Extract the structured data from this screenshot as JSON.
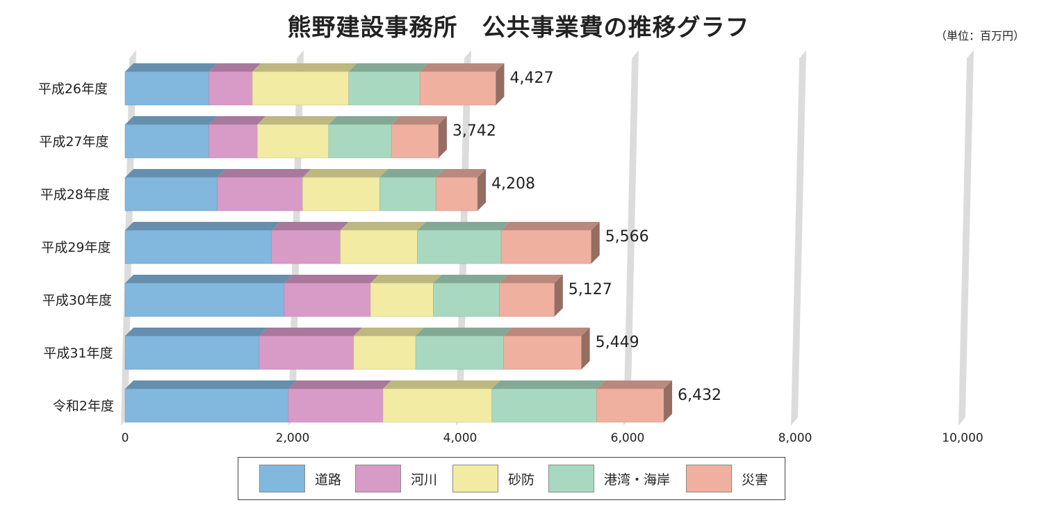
{
  "header": {
    "title": "熊野建設事務所　公共事業費の推移グラフ",
    "unit": "（単位：百万円）"
  },
  "chart_data": {
    "type": "bar",
    "orientation": "horizontal",
    "stacked": true,
    "title": "熊野建設事務所　公共事業費の推移グラフ",
    "unit": "（単位：百万円）",
    "categories": [
      "平成26年度",
      "平成27年度",
      "平成28年度",
      "平成29年度",
      "平成30年度",
      "平成31年度",
      "令和2年度"
    ],
    "totals": [
      4427,
      3742,
      4208,
      5566,
      5127,
      5449,
      6432
    ],
    "total_labels": [
      "4,427",
      "3,742",
      "4,208",
      "5,566",
      "5,127",
      "5,449",
      "6,432"
    ],
    "series": [
      {
        "name": "道路",
        "color": "#82b7de",
        "values": [
          1000,
          1000,
          1100,
          1750,
          1900,
          1600,
          1950
        ]
      },
      {
        "name": "河川",
        "color": "#d89bc8",
        "values": [
          520,
          580,
          1020,
          820,
          1030,
          1130,
          1130
        ]
      },
      {
        "name": "砂防",
        "color": "#f2eba4",
        "values": [
          1150,
          850,
          920,
          920,
          750,
          740,
          1300
        ]
      },
      {
        "name": "港湾・海岸",
        "color": "#a8d9c0",
        "values": [
          850,
          750,
          670,
          1000,
          790,
          1050,
          1250
        ]
      },
      {
        "name": "災害",
        "color": "#efb0a0",
        "values": [
          907,
          562,
          498,
          1076,
          657,
          929,
          802
        ]
      }
    ],
    "xlim": [
      0,
      10000
    ],
    "xticks": [
      0,
      2000,
      4000,
      6000,
      8000,
      10000
    ],
    "xtick_labels": [
      "0",
      "2,000",
      "4,000",
      "6,000",
      "8,000",
      "10,000"
    ],
    "grid": true,
    "style": "3d",
    "legend_position": "bottom"
  }
}
